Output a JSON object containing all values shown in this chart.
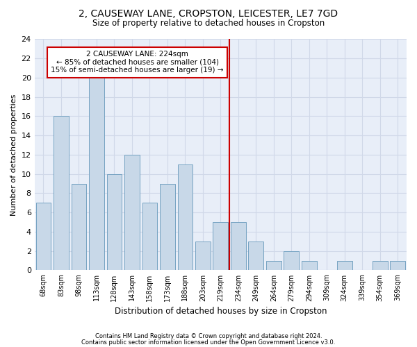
{
  "title1": "2, CAUSEWAY LANE, CROPSTON, LEICESTER, LE7 7GD",
  "title2": "Size of property relative to detached houses in Cropston",
  "xlabel": "Distribution of detached houses by size in Cropston",
  "ylabel": "Number of detached properties",
  "categories": [
    "68sqm",
    "83sqm",
    "98sqm",
    "113sqm",
    "128sqm",
    "143sqm",
    "158sqm",
    "173sqm",
    "188sqm",
    "203sqm",
    "219sqm",
    "234sqm",
    "249sqm",
    "264sqm",
    "279sqm",
    "294sqm",
    "309sqm",
    "324sqm",
    "339sqm",
    "354sqm",
    "369sqm"
  ],
  "values": [
    7,
    16,
    9,
    20,
    10,
    12,
    7,
    9,
    11,
    3,
    5,
    5,
    3,
    1,
    2,
    1,
    0,
    1,
    0,
    1,
    1
  ],
  "bar_color": "#c8d8e8",
  "bar_edge_color": "#6699bb",
  "grid_color": "#d0d8e8",
  "background_color": "#e8eef8",
  "vline_x_index": 10.5,
  "vline_color": "#cc0000",
  "annotation_line1": "2 CAUSEWAY LANE: 224sqm",
  "annotation_line2": "← 85% of detached houses are smaller (104)",
  "annotation_line3": "15% of semi-detached houses are larger (19) →",
  "annotation_box_color": "#cc0000",
  "footer1": "Contains HM Land Registry data © Crown copyright and database right 2024.",
  "footer2": "Contains public sector information licensed under the Open Government Licence v3.0.",
  "ylim": [
    0,
    24
  ],
  "yticks": [
    0,
    2,
    4,
    6,
    8,
    10,
    12,
    14,
    16,
    18,
    20,
    22,
    24
  ]
}
